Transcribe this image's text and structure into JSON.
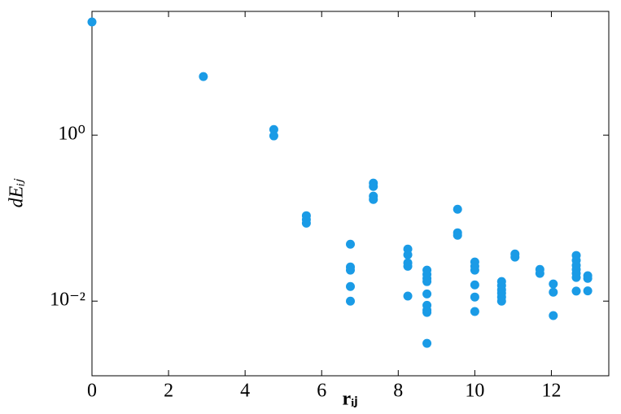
{
  "chart_data": {
    "type": "scatter",
    "x_label": "rᵢⱼ",
    "y_label": "dEᵢⱼ",
    "color": "#1a9be6",
    "log_y": true,
    "xlim": [
      0,
      13.5
    ],
    "ylim": [
      0.00126,
      31
    ],
    "xticks": [
      0,
      2,
      4,
      6,
      8,
      10,
      12
    ],
    "yticks": [
      {
        "value": 0.01,
        "label": "10⁻²"
      },
      {
        "value": 1,
        "label": "10⁰"
      }
    ],
    "x": [
      0,
      2.91,
      4.75,
      4.75,
      5.6,
      5.6,
      5.6,
      6.75,
      6.75,
      6.75,
      6.75,
      6.75,
      7.35,
      7.35,
      7.35,
      7.35,
      8.25,
      8.25,
      8.25,
      8.25,
      8.25,
      8.75,
      8.75,
      8.75,
      8.75,
      8.75,
      8.75,
      8.75,
      8.75,
      8.75,
      9.55,
      9.55,
      9.55,
      10,
      10,
      10,
      10,
      10,
      10,
      10.7,
      10.7,
      10.7,
      10.7,
      10.7,
      10.7,
      11.05,
      11.05,
      11.7,
      11.7,
      12.05,
      12.05,
      12.05,
      12.65,
      12.65,
      12.65,
      12.65,
      12.65,
      12.65,
      12.65,
      12.95,
      12.95,
      12.95
    ],
    "values": [
      23.1,
      5.08,
      1.17,
      0.98,
      0.107,
      0.096,
      0.087,
      0.0485,
      0.0258,
      0.0236,
      0.015,
      0.01,
      0.264,
      0.241,
      0.184,
      0.168,
      0.0424,
      0.0362,
      0.0289,
      0.0263,
      0.0115,
      0.0236,
      0.021,
      0.0188,
      0.0172,
      0.0122,
      0.0089,
      0.0078,
      0.0073,
      0.0031,
      0.128,
      0.0666,
      0.0622,
      0.0296,
      0.0263,
      0.0236,
      0.0157,
      0.0112,
      0.0075,
      0.0172,
      0.0154,
      0.0137,
      0.0125,
      0.0112,
      0.01,
      0.037,
      0.0339,
      0.0241,
      0.0216,
      0.0161,
      0.0128,
      0.0067,
      0.0355,
      0.031,
      0.027,
      0.0241,
      0.0216,
      0.0193,
      0.0132,
      0.0202,
      0.0188,
      0.0133
    ]
  }
}
